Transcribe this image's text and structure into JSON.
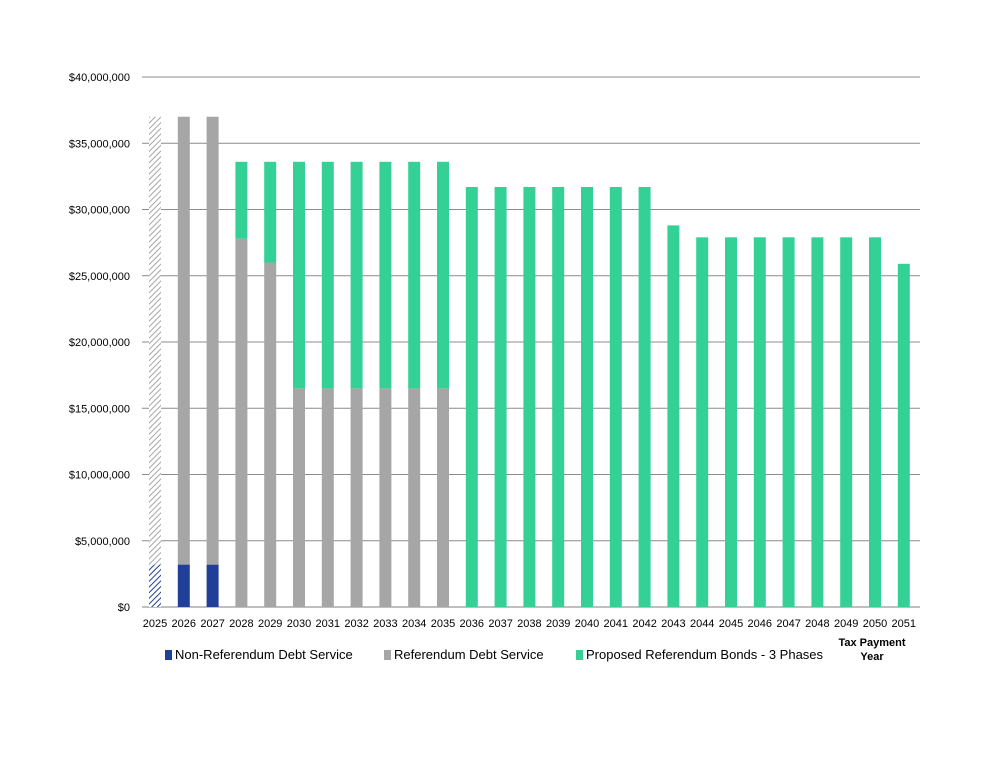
{
  "chart_data": {
    "type": "bar",
    "stacked": true,
    "categories": [
      "2025",
      "2026",
      "2027",
      "2028",
      "2029",
      "2030",
      "2031",
      "2032",
      "2033",
      "2034",
      "2035",
      "2036",
      "2037",
      "2038",
      "2039",
      "2040",
      "2041",
      "2042",
      "2043",
      "2044",
      "2045",
      "2046",
      "2047",
      "2048",
      "2049",
      "2050",
      "2051"
    ],
    "series": [
      {
        "name": "Non-Referendum Debt Service",
        "color": "#1f3f99",
        "values": [
          3200000,
          3200000,
          3200000,
          0,
          0,
          0,
          0,
          0,
          0,
          0,
          0,
          0,
          0,
          0,
          0,
          0,
          0,
          0,
          0,
          0,
          0,
          0,
          0,
          0,
          0,
          0,
          0
        ]
      },
      {
        "name": "Referendum Debt Service",
        "color": "#a6a6a6",
        "values": [
          33800000,
          33800000,
          33800000,
          27800000,
          26000000,
          16500000,
          16500000,
          16500000,
          16500000,
          16500000,
          16500000,
          0,
          0,
          0,
          0,
          0,
          0,
          0,
          0,
          0,
          0,
          0,
          0,
          0,
          0,
          0,
          0
        ]
      },
      {
        "name": "Proposed Referendum Bonds - 3 Phases",
        "color": "#33d196",
        "values": [
          0,
          0,
          0,
          5800000,
          7600000,
          17100000,
          17100000,
          17100000,
          17100000,
          17100000,
          17100000,
          31700000,
          31700000,
          31700000,
          31700000,
          31700000,
          31700000,
          31700000,
          28800000,
          27900000,
          27900000,
          27900000,
          27900000,
          27900000,
          27900000,
          27900000,
          25900000
        ]
      }
    ],
    "hatched_categories": [
      "2025"
    ],
    "y_ticks": [
      "$0",
      "$5,000,000",
      "$10,000,000",
      "$15,000,000",
      "$20,000,000",
      "$25,000,000",
      "$30,000,000",
      "$35,000,000",
      "$40,000,000"
    ],
    "ylim": [
      0,
      40000000
    ],
    "y_step": 5000000,
    "grid": true,
    "legend_position": "bottom",
    "xlabel": "Tax Payment Year",
    "xlabel_lines": [
      "Tax Payment",
      "Year"
    ],
    "ylabel": ""
  }
}
